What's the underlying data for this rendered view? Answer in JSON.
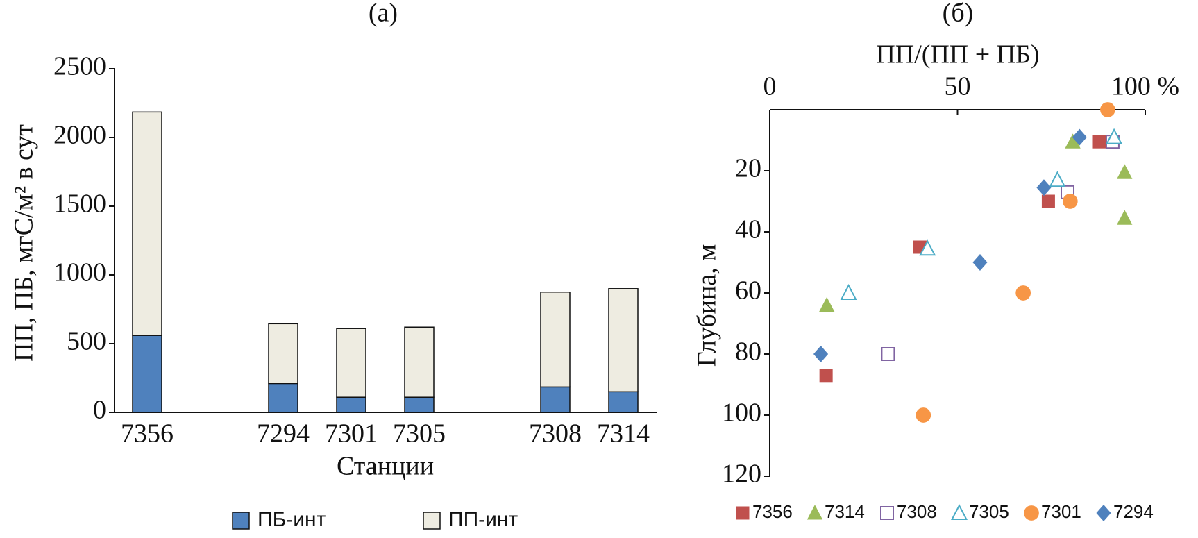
{
  "chart_data": [
    {
      "type": "bar",
      "stacked": true,
      "title": "(а)",
      "x_label": "Станции",
      "y_label": "ПП, ПБ, мгС/м² в сут",
      "categories": [
        "7356",
        null,
        "7294",
        "7301",
        "7305",
        null,
        "7308",
        "7314"
      ],
      "series": [
        {
          "name": "ПБ-инт",
          "color": "#4f81bd",
          "values": [
            560,
            null,
            210,
            110,
            110,
            null,
            185,
            150
          ]
        },
        {
          "name": "ПП-инт",
          "color": "#eeece1",
          "values": [
            1625,
            null,
            435,
            500,
            510,
            null,
            690,
            750
          ]
        }
      ],
      "ylim": [
        0,
        2500
      ],
      "yticks": [
        0,
        500,
        1000,
        1500,
        2000,
        2500
      ],
      "legend": "bottom"
    },
    {
      "type": "scatter",
      "title": "(б)",
      "x_label": "ПП/(ПП + ПБ)",
      "y_label": "Глубина, м",
      "x_axis_position": "top",
      "y_inverted": true,
      "xlim": [
        0,
        100
      ],
      "xticks": [
        0,
        50,
        {
          "value": 100,
          "label": "100 %"
        }
      ],
      "ylim": [
        0,
        120
      ],
      "yticks": [
        20,
        40,
        60,
        80,
        100,
        120
      ],
      "series": [
        {
          "name": "7356",
          "color": "#c0504d",
          "marker": "square",
          "x": [
            87.8,
            74.2,
            40,
            15
          ],
          "y": [
            10.5,
            30,
            45,
            87
          ]
        },
        {
          "name": "7314",
          "color": "#9bbb59",
          "marker": "triangle",
          "x": [
            80.7,
            94.5,
            94.5,
            15.2
          ],
          "y": [
            10.5,
            20.5,
            35.5,
            64
          ]
        },
        {
          "name": "7308",
          "color": "#8064a2",
          "marker": "square-open",
          "x": [
            91.3,
            79.3,
            31.5
          ],
          "y": [
            10.5,
            27,
            80
          ]
        },
        {
          "name": "7305",
          "color": "#4bacc6",
          "marker": "triangle-open",
          "x": [
            91.7,
            76.6,
            42,
            21
          ],
          "y": [
            9,
            23,
            45.5,
            60
          ]
        },
        {
          "name": "7301",
          "color": "#f79646",
          "marker": "circle",
          "x": [
            90,
            80,
            67.5,
            40.9
          ],
          "y": [
            0,
            30,
            60,
            100
          ]
        },
        {
          "name": "7294",
          "color": "#4f81bd",
          "marker": "diamond",
          "x": [
            82.5,
            73,
            56,
            13.6
          ],
          "y": [
            9,
            25.5,
            50,
            80
          ]
        }
      ],
      "legend": "bottom"
    }
  ]
}
